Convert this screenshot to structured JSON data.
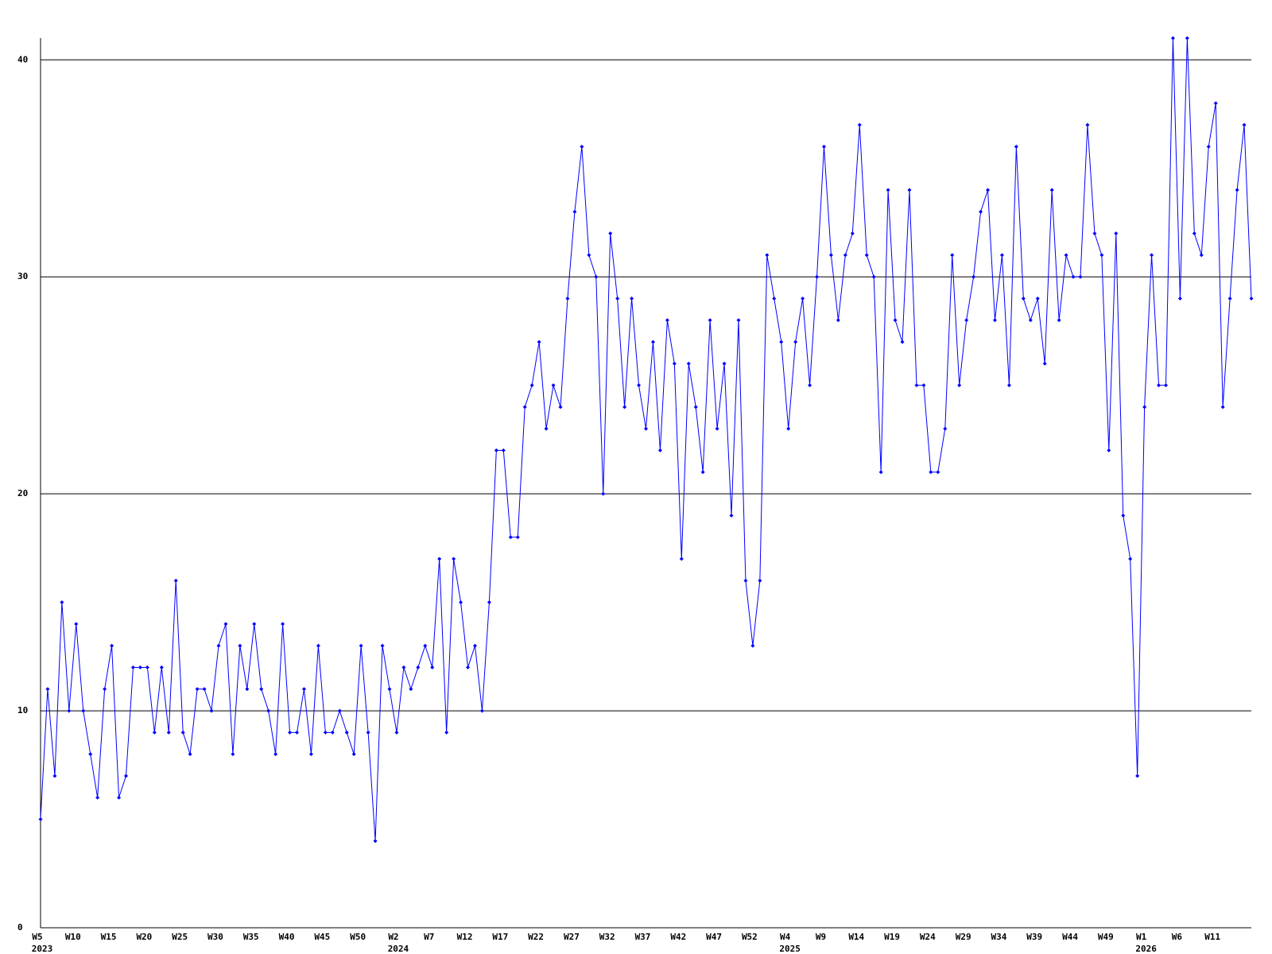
{
  "chart_data": {
    "type": "line",
    "color": "#0000ff",
    "grid": true,
    "marker": "diamond",
    "ylim": [
      0,
      41
    ],
    "yticks": [
      0,
      10,
      20,
      30,
      40
    ],
    "categories": [
      "W5",
      null,
      null,
      null,
      null,
      "W10",
      null,
      null,
      null,
      null,
      "W15",
      null,
      null,
      null,
      null,
      "W20",
      null,
      null,
      null,
      null,
      "W25",
      null,
      null,
      null,
      null,
      "W30",
      null,
      null,
      null,
      null,
      "W35",
      null,
      null,
      null,
      null,
      "W40",
      null,
      null,
      null,
      null,
      "W45",
      null,
      null,
      null,
      null,
      "W50",
      null,
      null,
      null,
      null,
      "W2",
      null,
      null,
      null,
      null,
      "W7",
      null,
      null,
      null,
      null,
      "W12",
      null,
      null,
      null,
      null,
      "W17",
      null,
      null,
      null,
      null,
      "W22",
      null,
      null,
      null,
      null,
      "W27",
      null,
      null,
      null,
      null,
      "W32",
      null,
      null,
      null,
      null,
      "W37",
      null,
      null,
      null,
      null,
      "W42",
      null,
      null,
      null,
      null,
      "W47",
      null,
      null,
      null,
      null,
      "W52",
      null,
      null,
      null,
      null,
      "W4",
      null,
      null,
      null,
      null,
      "W9",
      null,
      null,
      null,
      null,
      "W14",
      null,
      null,
      null,
      null,
      "W19",
      null,
      null,
      null,
      null,
      "W24",
      null,
      null,
      null,
      null,
      "W29",
      null,
      null,
      null,
      null,
      "W34",
      null,
      null,
      null,
      null,
      "W39",
      null,
      null,
      null,
      null,
      "W44",
      null,
      null,
      null,
      null,
      "W49",
      null,
      null,
      null,
      null,
      "W1",
      null,
      null,
      null,
      null,
      "W6",
      null,
      null,
      null,
      null,
      "W11",
      null,
      null,
      null,
      null,
      null
    ],
    "years": [
      "2023",
      null,
      null,
      null,
      null,
      null,
      null,
      null,
      null,
      null,
      null,
      null,
      null,
      null,
      null,
      null,
      null,
      null,
      null,
      null,
      null,
      null,
      null,
      null,
      null,
      null,
      null,
      null,
      null,
      null,
      null,
      null,
      null,
      null,
      null,
      null,
      null,
      null,
      null,
      null,
      null,
      null,
      null,
      null,
      null,
      null,
      null,
      null,
      null,
      null,
      "2024",
      null,
      null,
      null,
      null,
      null,
      null,
      null,
      null,
      null,
      null,
      null,
      null,
      null,
      null,
      null,
      null,
      null,
      null,
      null,
      null,
      null,
      null,
      null,
      null,
      null,
      null,
      null,
      null,
      null,
      null,
      null,
      null,
      null,
      null,
      null,
      null,
      null,
      null,
      null,
      null,
      null,
      null,
      null,
      null,
      null,
      null,
      null,
      null,
      null,
      null,
      null,
      null,
      null,
      null,
      "2025",
      null,
      null,
      null,
      null,
      null,
      null,
      null,
      null,
      null,
      null,
      null,
      null,
      null,
      null,
      null,
      null,
      null,
      null,
      null,
      null,
      null,
      null,
      null,
      null,
      null,
      null,
      null,
      null,
      null,
      null,
      null,
      null,
      null,
      null,
      null,
      null,
      null,
      null,
      null,
      null,
      null,
      null,
      null,
      null,
      null,
      null,
      null,
      null,
      null,
      "2026",
      null,
      null,
      null,
      null,
      null,
      null,
      null,
      null,
      null,
      null,
      null,
      null,
      null,
      null,
      null
    ],
    "values": [
      5,
      11,
      7,
      15,
      10,
      14,
      10,
      8,
      6,
      11,
      13,
      6,
      7,
      12,
      12,
      12,
      9,
      12,
      9,
      16,
      9,
      8,
      11,
      11,
      10,
      13,
      14,
      8,
      13,
      11,
      14,
      11,
      10,
      8,
      14,
      9,
      9,
      11,
      8,
      13,
      9,
      9,
      10,
      9,
      8,
      13,
      9,
      4,
      13,
      11,
      9,
      12,
      11,
      12,
      13,
      12,
      17,
      9,
      17,
      15,
      12,
      13,
      10,
      15,
      22,
      22,
      18,
      18,
      24,
      25,
      27,
      23,
      25,
      24,
      29,
      33,
      36,
      31,
      30,
      20,
      32,
      29,
      24,
      29,
      25,
      23,
      27,
      22,
      28,
      26,
      17,
      26,
      24,
      21,
      28,
      23,
      26,
      19,
      28,
      16,
      13,
      16,
      31,
      29,
      27,
      23,
      27,
      29,
      25,
      30,
      36,
      31,
      28,
      31,
      32,
      37,
      31,
      30,
      21,
      34,
      28,
      27,
      34,
      25,
      25,
      21,
      21,
      23,
      31,
      25,
      28,
      30,
      33,
      34,
      28,
      31,
      25,
      36,
      29,
      28,
      29,
      26,
      34,
      28,
      31,
      30,
      30,
      37,
      32,
      31,
      22,
      32,
      19,
      17,
      7,
      24,
      31,
      25,
      25,
      41,
      29,
      41,
      32,
      31,
      36,
      38,
      24,
      29,
      34,
      37,
      29
    ]
  }
}
